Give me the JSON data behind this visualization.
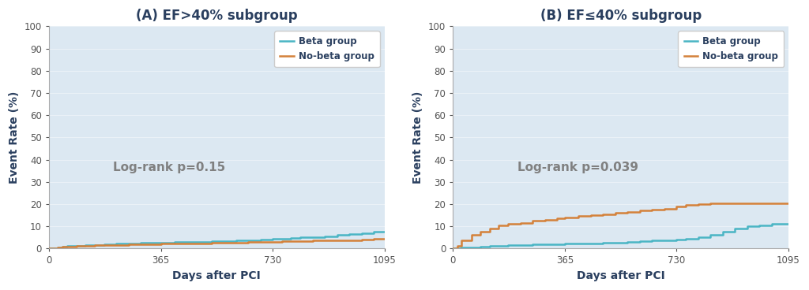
{
  "panel_A": {
    "title": "(A) EF>40% subgroup",
    "logrank": "Log-rank p=0.15",
    "beta_x": [
      0,
      14,
      28,
      45,
      60,
      90,
      120,
      150,
      180,
      220,
      260,
      300,
      340,
      365,
      410,
      450,
      490,
      530,
      570,
      610,
      650,
      690,
      730,
      760,
      790,
      820,
      860,
      900,
      940,
      980,
      1020,
      1060,
      1095
    ],
    "beta_y": [
      0,
      0,
      0.5,
      0.8,
      1.0,
      1.3,
      1.5,
      1.7,
      1.9,
      2.1,
      2.3,
      2.5,
      2.6,
      2.7,
      2.8,
      2.9,
      3.1,
      3.2,
      3.4,
      3.5,
      3.7,
      3.9,
      4.2,
      4.4,
      4.6,
      5.0,
      5.2,
      5.5,
      6.0,
      6.5,
      7.0,
      7.5,
      7.5
    ],
    "nobeta_x": [
      0,
      14,
      28,
      45,
      60,
      90,
      120,
      150,
      180,
      220,
      260,
      300,
      340,
      365,
      410,
      450,
      490,
      530,
      570,
      610,
      650,
      690,
      730,
      760,
      790,
      820,
      860,
      900,
      940,
      980,
      1020,
      1060,
      1095
    ],
    "nobeta_y": [
      0,
      0,
      0.4,
      0.7,
      0.9,
      1.1,
      1.3,
      1.5,
      1.6,
      1.7,
      1.8,
      1.9,
      2.0,
      2.1,
      2.2,
      2.3,
      2.4,
      2.5,
      2.6,
      2.7,
      2.8,
      3.0,
      3.1,
      3.2,
      3.3,
      3.4,
      3.5,
      3.6,
      3.7,
      3.8,
      4.0,
      4.2,
      4.2
    ],
    "logrank_x": 210,
    "logrank_y": 35
  },
  "panel_B": {
    "title": "(B) EF≤40% subgroup",
    "logrank": "Log-rank p=0.039",
    "beta_x": [
      0,
      14,
      28,
      60,
      90,
      120,
      150,
      180,
      220,
      260,
      300,
      340,
      365,
      410,
      450,
      490,
      530,
      570,
      610,
      650,
      690,
      730,
      760,
      800,
      840,
      880,
      920,
      960,
      1000,
      1040,
      1095
    ],
    "beta_y": [
      0,
      0,
      0.3,
      0.5,
      0.8,
      1.0,
      1.2,
      1.4,
      1.6,
      1.8,
      1.9,
      2.0,
      2.1,
      2.2,
      2.3,
      2.5,
      2.7,
      3.0,
      3.2,
      3.5,
      3.8,
      4.0,
      4.5,
      5.0,
      6.0,
      7.5,
      9.0,
      10.0,
      10.5,
      11.0,
      11.0
    ],
    "nobeta_x": [
      0,
      14,
      28,
      60,
      90,
      120,
      150,
      180,
      220,
      260,
      300,
      340,
      365,
      410,
      450,
      490,
      530,
      570,
      610,
      650,
      690,
      730,
      760,
      800,
      840,
      880,
      920,
      960,
      1000,
      1040,
      1095
    ],
    "nobeta_y": [
      0,
      1.0,
      3.5,
      6.0,
      7.5,
      9.0,
      10.5,
      11.0,
      11.5,
      12.5,
      13.0,
      13.5,
      14.0,
      14.5,
      15.0,
      15.5,
      16.0,
      16.5,
      17.0,
      17.5,
      18.0,
      19.0,
      19.5,
      20.0,
      20.5,
      20.5,
      20.5,
      20.5,
      20.5,
      20.5,
      20.5
    ],
    "logrank_x": 210,
    "logrank_y": 35
  },
  "beta_color": "#4ab5c4",
  "nobeta_color": "#d4813a",
  "bg_color_top": "#e8eef4",
  "bg_color_bottom": "#d0dce8",
  "ylabel": "Event Rate (%)",
  "xlabel": "Days after PCI",
  "ylim": [
    0,
    100
  ],
  "yticks": [
    0,
    10,
    20,
    30,
    40,
    50,
    60,
    70,
    80,
    90,
    100
  ],
  "xticks": [
    0,
    365,
    730,
    1095
  ],
  "xlim": [
    0,
    1095
  ],
  "legend_labels": [
    "Beta group",
    "No-beta group"
  ],
  "title_color": "#2a3f5f",
  "logrank_color": "#808080",
  "axis_color": "#555555",
  "tick_color": "#555555",
  "title_fontsize": 12,
  "label_fontsize": 10,
  "tick_fontsize": 8.5,
  "legend_fontsize": 8.5,
  "logrank_fontsize": 11,
  "linewidth": 1.8
}
